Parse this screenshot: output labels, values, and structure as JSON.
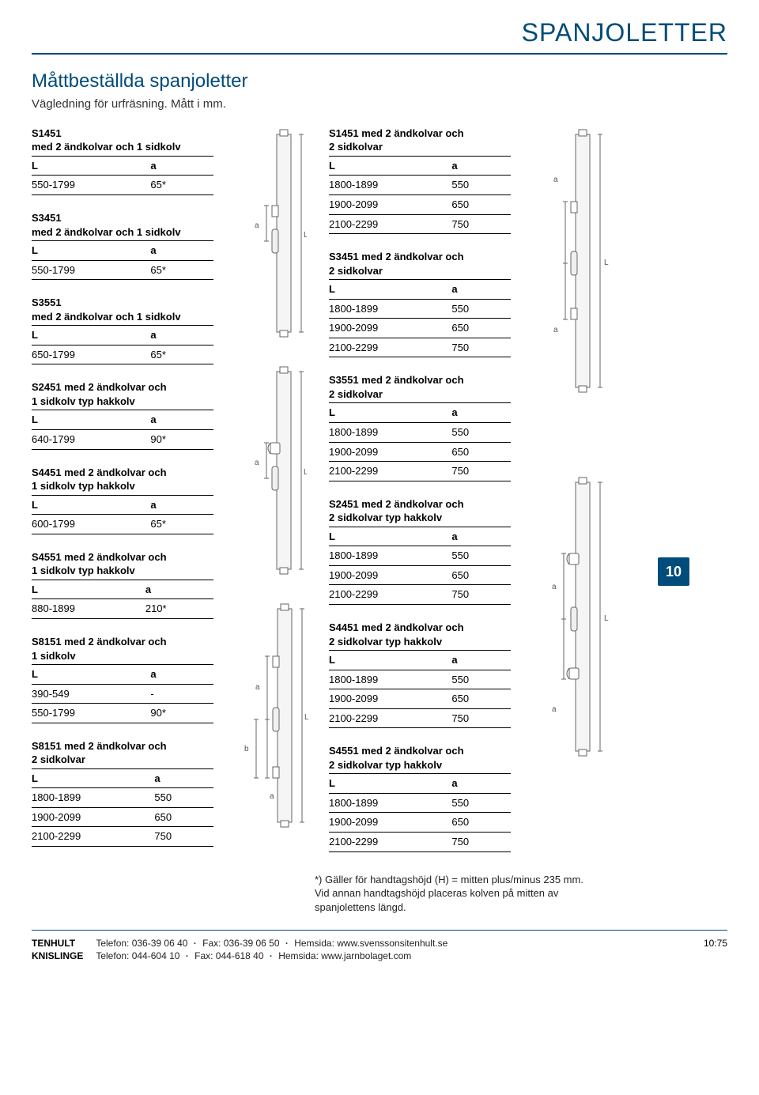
{
  "header": "SPANJOLETTER",
  "subtitle": "Måttbeställda spanjoletter",
  "subsub": "Vägledning för urfräsning. Mått i mm.",
  "page_badge": "10",
  "footer": {
    "loc1": "TENHULT",
    "info1a": "Telefon: 036-39 06 40",
    "info1b": "Fax: 036-39 06 50",
    "info1c": "Hemsida: www.svenssonsitenhult.se",
    "loc2": "KNISLINGE",
    "info2a": "Telefon: 044-604 10",
    "info2b": "Fax: 044-618 40",
    "info2c": "Hemsida: www.jarnbolaget.com",
    "pageno": "10:75"
  },
  "footnote": "*) Gäller för handtagshöjd (H) = mitten plus/minus 235 mm. Vid annan handtagshöjd placeras kolven på mitten av spanjolettens längd.",
  "labels": {
    "L": "L",
    "a": "a"
  },
  "left": [
    {
      "title": "S1451",
      "sub": "med 2 ändkolvar och 1 sidkolv",
      "rows": [
        [
          "550-1799",
          "65*"
        ]
      ]
    },
    {
      "title": "S3451",
      "sub": "med 2 ändkolvar och 1 sidkolv",
      "rows": [
        [
          "550-1799",
          "65*"
        ]
      ]
    },
    {
      "title": "S3551",
      "sub": "med 2 ändkolvar och 1 sidkolv",
      "rows": [
        [
          "650-1799",
          "65*"
        ]
      ]
    },
    {
      "title": "S2451 med 2 ändkolvar och",
      "sub": "1 sidkolv typ hakkolv",
      "rows": [
        [
          "640-1799",
          "90*"
        ]
      ]
    },
    {
      "title": "S4451 med 2 ändkolvar och",
      "sub": "1 sidkolv typ hakkolv",
      "rows": [
        [
          "600-1799",
          "65*"
        ]
      ]
    },
    {
      "title": "S4551 med 2 ändkolvar och",
      "sub": "1 sidkolv typ hakkolv",
      "rows": [
        [
          "880-1899",
          "210*"
        ]
      ]
    },
    {
      "title": "S8151 med 2 ändkolvar och",
      "sub": "1 sidkolv",
      "rows": [
        [
          "390-549",
          "-"
        ],
        [
          "550-1799",
          "90*"
        ]
      ]
    },
    {
      "title": "S8151 med 2 ändkolvar och",
      "sub": "2 sidkolvar",
      "rows": [
        [
          "1800-1899",
          "550"
        ],
        [
          "1900-2099",
          "650"
        ],
        [
          "2100-2299",
          "750"
        ]
      ]
    }
  ],
  "mid": [
    {
      "title": "S1451 med 2 ändkolvar och",
      "sub": "2 sidkolvar",
      "rows": [
        [
          "1800-1899",
          "550"
        ],
        [
          "1900-2099",
          "650"
        ],
        [
          "2100-2299",
          "750"
        ]
      ]
    },
    {
      "title": "S3451 med 2 ändkolvar och",
      "sub": "2 sidkolvar",
      "rows": [
        [
          "1800-1899",
          "550"
        ],
        [
          "1900-2099",
          "650"
        ],
        [
          "2100-2299",
          "750"
        ]
      ]
    },
    {
      "title": "S3551 med 2 ändkolvar och",
      "sub": "2 sidkolvar",
      "rows": [
        [
          "1800-1899",
          "550"
        ],
        [
          "1900-2099",
          "650"
        ],
        [
          "2100-2299",
          "750"
        ]
      ]
    },
    {
      "title": "S2451 med 2 ändkolvar och",
      "sub": "2 sidkolvar typ hakkolv",
      "rows": [
        [
          "1800-1899",
          "550"
        ],
        [
          "1900-2099",
          "650"
        ],
        [
          "2100-2299",
          "750"
        ]
      ]
    },
    {
      "title": "S4451 med 2 ändkolvar och",
      "sub": "2 sidkolvar typ hakkolv",
      "rows": [
        [
          "1800-1899",
          "550"
        ],
        [
          "1900-2099",
          "650"
        ],
        [
          "2100-2299",
          "750"
        ]
      ]
    },
    {
      "title": "S4551 med 2 ändkolvar och",
      "sub": "2 sidkolvar typ hakkolv",
      "rows": [
        [
          "1800-1899",
          "550"
        ],
        [
          "1900-2099",
          "650"
        ],
        [
          "2100-2299",
          "750"
        ]
      ]
    }
  ],
  "diagrams": {
    "stroke": "#555",
    "fill": "#eee",
    "text": "#444"
  }
}
